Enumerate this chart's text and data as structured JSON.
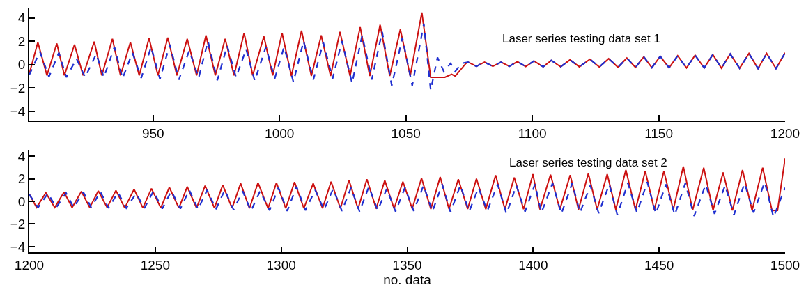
{
  "chart_data": [
    {
      "type": "line",
      "annotations": [
        "Laser series testing data set 1"
      ],
      "xlim": [
        901,
        1200
      ],
      "xticks": [
        950,
        1000,
        1050,
        1100,
        1150,
        1200
      ],
      "ylim": [
        -4.8,
        4.8
      ],
      "yticks": [
        -4,
        -2,
        0,
        2,
        4
      ],
      "series": [
        {
          "color": "#1f2fd0",
          "line_style": "dashed",
          "x": [
            901,
            905.2,
            908.8,
            912.7,
            915.7,
            919.7,
            923.1,
            927.5,
            930.5,
            934.7,
            937.9,
            941.8,
            945.3,
            949.2,
            952.7,
            956.6,
            960.2,
            964.3,
            968.0,
            971.7,
            975.4,
            979.3,
            982.8,
            986.8,
            990.2,
            994.6,
            998.1,
            1001.8,
            1005.5,
            1009.5,
            1013.4,
            1017.3,
            1021.0,
            1024.7,
            1028.7,
            1032.7,
            1036.5,
            1040.6,
            1044.4,
            1048.6,
            1052.5,
            1057.1,
            1059.8,
            1062.5,
            1065.0,
            1067.7,
            1069.5,
            1072.0,
            1074.6,
            1077.9,
            1081.1,
            1084.4,
            1087.6,
            1090.9,
            1094.1,
            1097.4,
            1100.6,
            1104.3,
            1107.5,
            1111.2,
            1114.9,
            1118.6,
            1122.8,
            1126.5,
            1130.2,
            1133.9,
            1137.4,
            1140.8,
            1144.1,
            1147.3,
            1150.6,
            1154.1,
            1157.5,
            1161.0,
            1164.4,
            1168.0,
            1171.4,
            1174.8,
            1178.3,
            1182.0,
            1185.7,
            1189.3,
            1192.7,
            1196.4,
            1200
          ],
          "values": [
            -0.9,
            1.1,
            -1.05,
            1.0,
            -1.1,
            0.5,
            -1.1,
            0.9,
            -1.1,
            1.5,
            -1.2,
            1.0,
            -1.15,
            1.5,
            -1.25,
            1.7,
            -1.3,
            1.2,
            -1.15,
            2.0,
            -1.35,
            1.6,
            -1.1,
            1.3,
            -1.4,
            1.5,
            -1.2,
            1.5,
            -1.5,
            2.0,
            -1.3,
            1.9,
            -1.2,
            2.0,
            -1.6,
            2.5,
            -1.3,
            2.8,
            -1.8,
            2.3,
            -1.8,
            3.5,
            -2.2,
            0.6,
            -0.6,
            0.1,
            -0.6,
            0.1,
            0.2,
            -0.16,
            0.2,
            -0.16,
            0.2,
            -0.16,
            0.25,
            -0.18,
            0.3,
            -0.2,
            0.35,
            -0.2,
            0.4,
            -0.2,
            0.45,
            -0.22,
            0.5,
            -0.24,
            0.55,
            -0.25,
            0.65,
            -0.27,
            0.7,
            -0.28,
            0.75,
            -0.3,
            0.8,
            -0.3,
            0.85,
            -0.32,
            0.9,
            -0.33,
            0.95,
            -0.35,
            0.95,
            -0.35,
            1.0
          ]
        },
        {
          "color": "#cc1111",
          "line_style": "solid",
          "x": [
            901,
            904.4,
            908.0,
            911.9,
            914.9,
            918.9,
            922.3,
            926.7,
            929.7,
            933.9,
            937.1,
            941.0,
            944.5,
            948.4,
            951.9,
            955.8,
            959.4,
            963.5,
            967.2,
            970.9,
            974.6,
            978.5,
            982.0,
            986.0,
            989.4,
            993.8,
            997.3,
            1001.0,
            1004.7,
            1008.7,
            1012.6,
            1016.5,
            1020.2,
            1023.9,
            1027.9,
            1031.9,
            1035.7,
            1039.8,
            1043.6,
            1047.8,
            1051.7,
            1056.3,
            1059.8,
            1065.4,
            1068.1,
            1069.5,
            1073.7,
            1074.6,
            1077.9,
            1081.1,
            1084.4,
            1087.6,
            1090.9,
            1094.1,
            1097.4,
            1100.6,
            1104.3,
            1107.5,
            1111.2,
            1114.9,
            1118.6,
            1122.8,
            1126.5,
            1130.2,
            1133.9,
            1137.4,
            1140.8,
            1144.1,
            1147.3,
            1150.6,
            1154.1,
            1157.5,
            1161.0,
            1164.4,
            1168.0,
            1171.4,
            1174.8,
            1178.3,
            1182.0,
            1185.7,
            1189.3,
            1192.7,
            1196.4,
            1200
          ],
          "values": [
            -0.8,
            1.9,
            -0.94,
            1.8,
            -0.94,
            1.7,
            -0.94,
            1.96,
            -0.94,
            2.2,
            -0.94,
            1.9,
            -0.94,
            2.25,
            -0.94,
            2.3,
            -0.94,
            2.2,
            -0.94,
            2.5,
            -0.94,
            2.2,
            -0.94,
            2.7,
            -0.94,
            2.4,
            -0.94,
            2.7,
            -0.98,
            2.9,
            -0.98,
            2.5,
            -0.98,
            2.8,
            -0.98,
            3.2,
            -0.98,
            3.4,
            -0.98,
            3.0,
            -0.98,
            4.45,
            -1.1,
            -1.1,
            -0.84,
            -1.0,
            0.08,
            0.2,
            -0.16,
            0.2,
            -0.16,
            0.2,
            -0.16,
            0.25,
            -0.18,
            0.3,
            -0.2,
            0.35,
            -0.2,
            0.4,
            -0.2,
            0.45,
            -0.22,
            0.5,
            -0.24,
            0.55,
            -0.25,
            0.65,
            -0.27,
            0.7,
            -0.28,
            0.75,
            -0.3,
            0.8,
            -0.3,
            0.85,
            -0.32,
            0.9,
            -0.33,
            0.95,
            -0.35,
            0.95,
            -0.35,
            1.0
          ]
        }
      ]
    },
    {
      "type": "line",
      "xlabel": "no. data",
      "annotations": [
        "Laser series testing data set 2"
      ],
      "xlim": [
        1200,
        1500
      ],
      "xticks": [
        1200,
        1250,
        1300,
        1350,
        1400,
        1450,
        1500
      ],
      "ylim": [
        -4.5,
        4.5
      ],
      "yticks": [
        -4,
        -2,
        0,
        2,
        4
      ],
      "series": [
        {
          "color": "#1f2fd0",
          "line_style": "dashed",
          "x": [
            1200,
            1203.5,
            1207.4,
            1210.7,
            1214.6,
            1217.6,
            1221.5,
            1224.6,
            1228.2,
            1231.5,
            1235.2,
            1238.5,
            1242.4,
            1245.7,
            1249.3,
            1252.8,
            1256.4,
            1260.0,
            1263.5,
            1267.0,
            1270.6,
            1274.1,
            1277.6,
            1281.1,
            1284.7,
            1288.0,
            1291.6,
            1295.4,
            1298.9,
            1302.4,
            1306.1,
            1309.6,
            1313.5,
            1317.0,
            1320.6,
            1324.1,
            1327.7,
            1331.1,
            1334.8,
            1338.3,
            1341.9,
            1345.4,
            1349.1,
            1352.6,
            1356.5,
            1360.0,
            1363.9,
            1367.2,
            1371.1,
            1374.6,
            1378.3,
            1381.8,
            1385.9,
            1389.4,
            1393.3,
            1396.8,
            1400.7,
            1403.3,
            1407.7,
            1411.2,
            1415.5,
            1418.6,
            1422.7,
            1426.0,
            1430.2,
            1433.4,
            1437.6,
            1441.2,
            1445.3,
            1448.7,
            1452.7,
            1456.2,
            1460.4,
            1463.9,
            1468.5,
            1472.0,
            1476.2,
            1479.7,
            1483.9,
            1487.5,
            1491.9,
            1495.4,
            1500
          ],
          "values": [
            0.6,
            -0.55,
            0.7,
            -0.55,
            0.75,
            -0.55,
            0.8,
            -0.55,
            0.85,
            -0.6,
            0.8,
            -0.6,
            0.7,
            -0.6,
            0.9,
            -0.65,
            0.9,
            -0.65,
            1.0,
            -0.7,
            1.0,
            -0.7,
            1.0,
            -0.75,
            0.9,
            -0.85,
            0.9,
            -0.8,
            1.2,
            -0.85,
            1.3,
            -0.8,
            1.0,
            -0.75,
            1.1,
            -0.85,
            1.2,
            -0.9,
            1.3,
            -0.8,
            1.1,
            -0.9,
            1.2,
            -0.85,
            1.4,
            -0.9,
            1.5,
            -0.95,
            1.4,
            -0.9,
            1.2,
            -0.85,
            1.5,
            -1.1,
            1.4,
            -0.9,
            1.5,
            -1.0,
            1.6,
            -1.1,
            1.6,
            -1.0,
            1.4,
            -1.05,
            1.5,
            -1.2,
            1.6,
            -1.0,
            1.7,
            -1.1,
            1.5,
            -1.2,
            1.6,
            -1.3,
            1.5,
            -1.1,
            1.4,
            -1.2,
            1.6,
            -1.0,
            1.7,
            -1.4,
            1.2
          ]
        },
        {
          "color": "#cc1111",
          "line_style": "solid",
          "x": [
            1200,
            1202.9,
            1206.6,
            1210.1,
            1213.8,
            1217.0,
            1220.7,
            1224.0,
            1227.4,
            1230.9,
            1234.4,
            1237.9,
            1241.6,
            1245.1,
            1248.5,
            1252.2,
            1255.6,
            1259.4,
            1262.7,
            1266.4,
            1269.8,
            1273.5,
            1276.8,
            1280.5,
            1283.9,
            1287.4,
            1290.8,
            1294.8,
            1298.1,
            1301.8,
            1305.3,
            1309.0,
            1312.7,
            1316.4,
            1319.8,
            1323.5,
            1326.9,
            1330.5,
            1334.0,
            1337.7,
            1341.1,
            1344.8,
            1348.3,
            1352.0,
            1355.7,
            1359.4,
            1363.1,
            1366.6,
            1370.3,
            1374.0,
            1377.5,
            1381.2,
            1385.1,
            1388.8,
            1392.5,
            1396.2,
            1399.9,
            1402.7,
            1406.9,
            1410.6,
            1414.7,
            1418.0,
            1421.9,
            1425.4,
            1429.4,
            1432.8,
            1436.8,
            1440.6,
            1444.5,
            1448.1,
            1451.9,
            1455.6,
            1459.6,
            1463.3,
            1467.7,
            1471.4,
            1475.4,
            1479.1,
            1483.1,
            1486.9,
            1491.1,
            1494.8,
            1497.0,
            1500
          ],
          "values": [
            0.65,
            -0.55,
            0.76,
            -0.55,
            0.82,
            -0.55,
            0.88,
            -0.55,
            0.92,
            -0.55,
            0.96,
            -0.58,
            1.07,
            -0.58,
            1.13,
            -0.58,
            1.23,
            -0.6,
            1.29,
            -0.6,
            1.37,
            -0.6,
            1.44,
            -0.6,
            1.58,
            -0.62,
            1.64,
            -0.62,
            1.64,
            -0.62,
            1.7,
            -0.62,
            1.58,
            -0.62,
            1.74,
            -0.62,
            1.85,
            -0.65,
            1.95,
            -0.65,
            1.85,
            -0.65,
            1.74,
            -0.65,
            2.05,
            -0.68,
            2.15,
            -0.68,
            1.95,
            -0.68,
            2.0,
            -0.7,
            2.3,
            -0.7,
            2.1,
            -0.7,
            2.4,
            -0.72,
            2.36,
            -0.72,
            2.32,
            -0.72,
            2.46,
            -0.72,
            2.4,
            -0.72,
            2.77,
            -0.75,
            2.67,
            -0.75,
            2.67,
            -0.75,
            3.08,
            -0.78,
            2.97,
            -0.78,
            2.56,
            -0.8,
            2.77,
            -0.8,
            2.97,
            -0.82,
            -0.8,
            3.8
          ]
        }
      ]
    }
  ]
}
